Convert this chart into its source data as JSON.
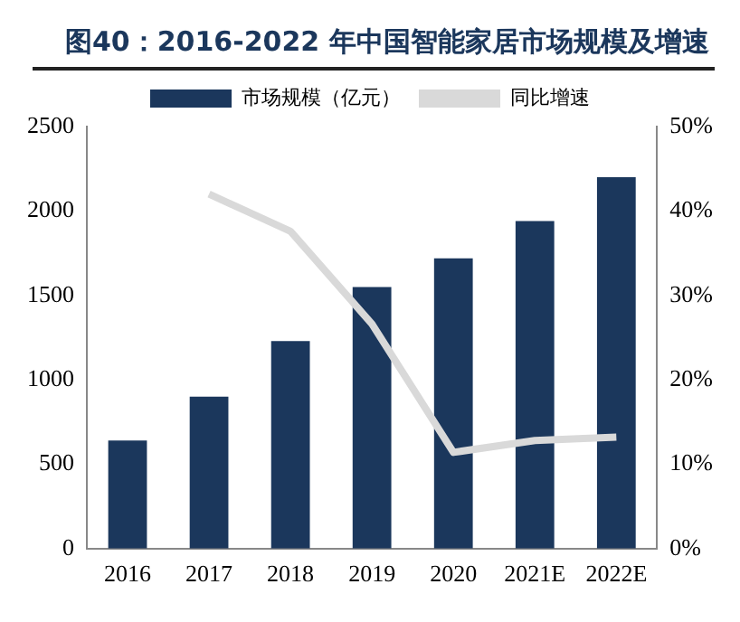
{
  "chart_data": {
    "type": "bar",
    "title": "图40：2016-2022 年中国智能家居市场规模及增速",
    "categories": [
      "2016",
      "2017",
      "2018",
      "2019",
      "2020",
      "2021E",
      "2022E"
    ],
    "series": [
      {
        "name": "市场规模（亿元）",
        "color": "#1b375c",
        "values": [
          640,
          900,
          1230,
          1550,
          1720,
          1940,
          2200
        ]
      },
      {
        "name": "同比增速",
        "type": "line",
        "axis": "y2",
        "color": "#d9d9d9",
        "values": [
          null,
          42,
          37.6,
          26.6,
          11.4,
          12.8,
          13.2
        ]
      }
    ],
    "ylim": [
      0,
      2500
    ],
    "yticks": [
      0,
      500,
      1000,
      1500,
      2000,
      2500
    ],
    "y2lim": [
      0,
      50
    ],
    "y2ticks": [
      {
        "value": 0,
        "label": "0%"
      },
      {
        "value": 10,
        "label": "10%"
      },
      {
        "value": 20,
        "label": "20%"
      },
      {
        "value": 30,
        "label": "30%"
      },
      {
        "value": 40,
        "label": "40%"
      },
      {
        "value": 50,
        "label": "50%"
      }
    ],
    "legend": "top",
    "grid": false,
    "marker": "none"
  }
}
